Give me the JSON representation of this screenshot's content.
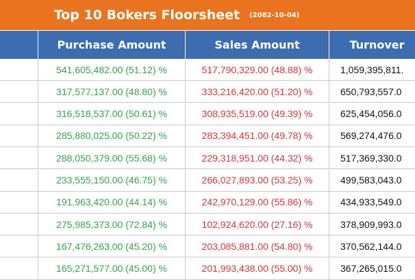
{
  "header": {
    "title": "Top 10 Bokers Floorsheet",
    "date": "(2082-10-04)"
  },
  "table": {
    "columns": [
      "Purchase Amount",
      "Sales Amount",
      "Turnover"
    ],
    "rows": [
      [
        "541,605,482.00 (51.12) %",
        "517,790,329.00 (48.88) %",
        "1,059,395,811."
      ],
      [
        "317,577,137.00 (48.80) %",
        "333,216,420.00 (51.20) %",
        "650,793,557.0"
      ],
      [
        "316,518,537.00 (50.61) %",
        "308,935,519.00 (49.39) %",
        "625,454,056.0"
      ],
      [
        "285,880,025.00 (50.22) %",
        "283,394,451.00 (49.78) %",
        "569,274,476.0"
      ],
      [
        "288,050,379.00 (55.68) %",
        "229,318,951.00 (44.32) %",
        "517,369,330.0"
      ],
      [
        "233,555,150.00 (46.75) %",
        "266,027,893.00 (53.25) %",
        "499,583,043.0"
      ],
      [
        "191,963,420.00 (44.14) %",
        "242,970,129.00 (55.86) %",
        "434,933,549.0"
      ],
      [
        "275,985,373.00 (72.84) %",
        "102,924,620.00 (27.16) %",
        "378,909,993.0"
      ],
      [
        "167,476,263.00 (45.20) %",
        "203,085,881.00 (54.80) %",
        "370,562,144.0"
      ],
      [
        "165,271,577.00 (45.00) %",
        "201,993,438.00 (55.00) %",
        "367,265,015.0"
      ]
    ]
  }
}
